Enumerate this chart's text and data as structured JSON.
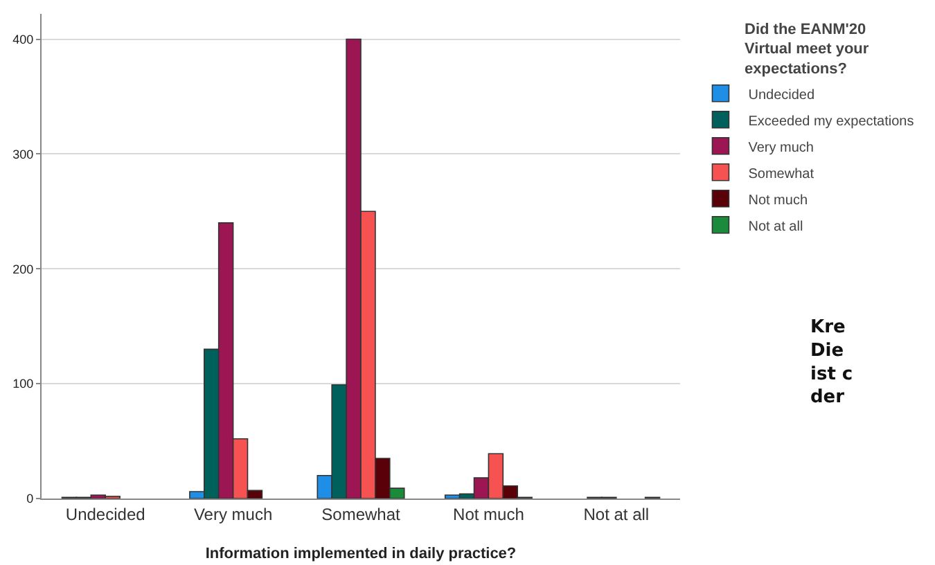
{
  "chart_data": {
    "type": "bar",
    "xlabel": "Information implemented in daily practice?",
    "legend_title": "Did the EANM'20\nVirtual meet your\nexpectations?",
    "categories": [
      "Undecided",
      "Very much",
      "Somewhat",
      "Not much",
      "Not at all"
    ],
    "series": [
      {
        "name": "Undecided",
        "color": "#1e8ee6",
        "values": [
          1,
          6,
          20,
          3,
          null
        ]
      },
      {
        "name": "Exceeded my expectations",
        "color": "#00605c",
        "values": [
          1,
          130,
          99,
          4,
          1
        ]
      },
      {
        "name": "Very much",
        "color": "#9c1654",
        "values": [
          3,
          240,
          400,
          18,
          1
        ]
      },
      {
        "name": "Somewhat",
        "color": "#f65251",
        "values": [
          2,
          52,
          250,
          39,
          null
        ]
      },
      {
        "name": "Not much",
        "color": "#5a0008",
        "values": [
          null,
          7,
          35,
          11,
          null
        ]
      },
      {
        "name": "Not at all",
        "color": "#1b8a3a",
        "values": [
          null,
          null,
          9,
          1,
          1
        ]
      }
    ],
    "ylim": [
      0,
      422
    ],
    "yticks": [
      0,
      100,
      200,
      300,
      400
    ],
    "grid": "y",
    "legend": "top right",
    "annotations": [
      "Kre\nDie\nist c\nder"
    ]
  }
}
